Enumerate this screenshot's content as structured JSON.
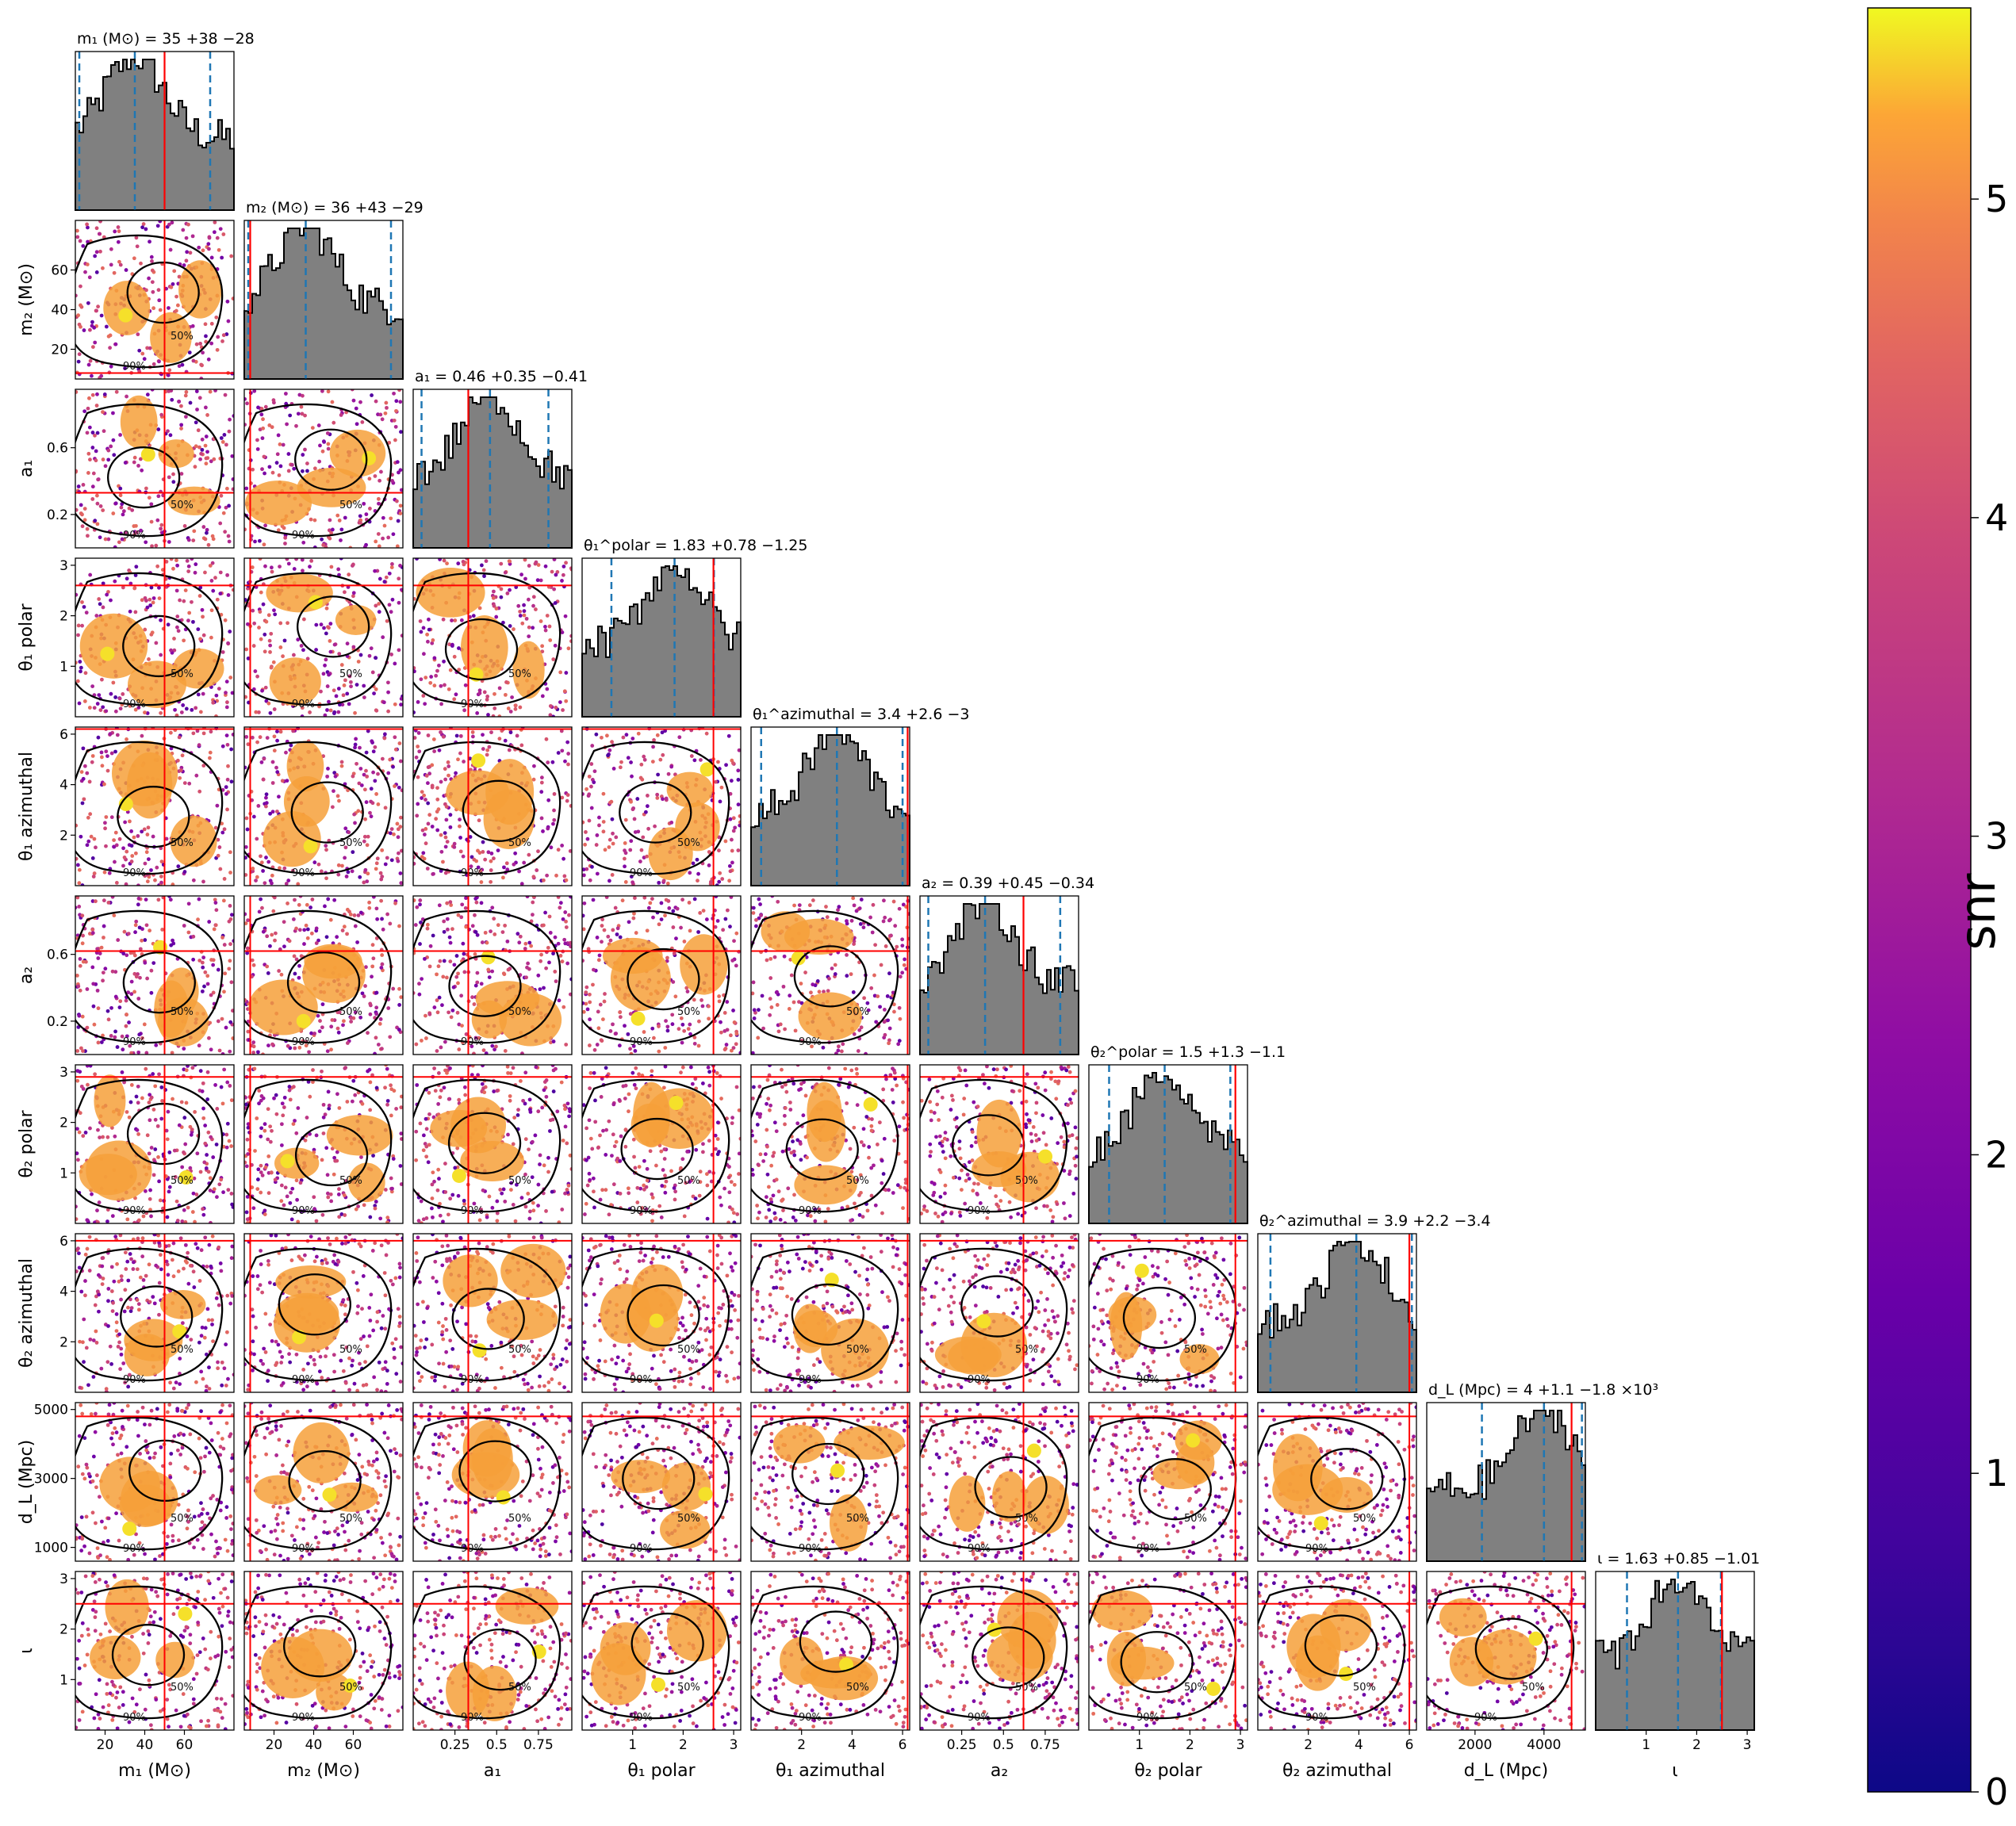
{
  "chart_data": {
    "type": "corner",
    "description": "Posterior corner plot: 1D histograms on the diagonal, 2D scatter (colored by snr) with 50%/90% contours off-diagonal",
    "parameters": [
      {
        "key": "m1",
        "label_html": "m<sub>1</sub> (M<sub>⊙</sub>)",
        "header": "m₁ (M⊙) = 35 +38 −28",
        "median": 35,
        "plus": 38,
        "minus": 28,
        "true": 50,
        "range": [
          5,
          85
        ],
        "ticks": [
          20,
          40,
          60
        ]
      },
      {
        "key": "m2",
        "label_html": "m<sub>2</sub> (M<sub>⊙</sub>)",
        "header": "m₂ (M⊙) = 36 +43 −29",
        "median": 36,
        "plus": 43,
        "minus": 29,
        "true": 8,
        "range": [
          5,
          85
        ],
        "ticks": [
          20,
          40,
          60
        ]
      },
      {
        "key": "a1",
        "header": "a₁ = 0.46 +0.35 −0.41",
        "median": 0.46,
        "plus": 0.35,
        "minus": 0.41,
        "true": 0.33,
        "range": [
          0.0,
          0.95
        ],
        "ticks": [
          0.25,
          0.5,
          0.75
        ]
      },
      {
        "key": "theta1_polar",
        "header": "θ₁^polar = 1.83 +0.78 −1.25",
        "median": 1.83,
        "plus": 0.78,
        "minus": 1.25,
        "true": 2.6,
        "range": [
          0,
          3.14
        ],
        "ticks": [
          1,
          2,
          3
        ]
      },
      {
        "key": "theta1_azimuthal",
        "header": "θ₁^azimuthal = 3.4 +2.6 −3",
        "median": 3.4,
        "plus": 2.6,
        "minus": 3,
        "true": 6.2,
        "range": [
          0,
          6.28
        ],
        "ticks": [
          2,
          4,
          6
        ]
      },
      {
        "key": "a2",
        "header": "a₂ = 0.39 +0.45 −0.34",
        "median": 0.39,
        "plus": 0.45,
        "minus": 0.34,
        "true": 0.62,
        "range": [
          0.0,
          0.95
        ],
        "ticks": [
          0.25,
          0.5,
          0.75
        ]
      },
      {
        "key": "theta2_polar",
        "header": "θ₂^polar = 1.5 +1.3 −1.1",
        "median": 1.5,
        "plus": 1.3,
        "minus": 1.1,
        "true": 2.9,
        "range": [
          0,
          3.14
        ],
        "ticks": [
          1,
          2,
          3
        ]
      },
      {
        "key": "theta2_azimuthal",
        "header": "θ₂^azimuthal = 3.9 +2.2 −3.4",
        "median": 3.9,
        "plus": 2.2,
        "minus": 3.4,
        "true": 6.0,
        "range": [
          0,
          6.28
        ],
        "ticks": [
          2,
          4,
          6
        ]
      },
      {
        "key": "dL",
        "header": "d_L (Mpc) = 4 +1.1 −1.8 ×10³",
        "median": 4000,
        "plus": 1100,
        "minus": 1800,
        "true": 4800,
        "range": [
          600,
          5200
        ],
        "ticks": [
          2000,
          4000
        ],
        "ylabel_ticks": [
          1000,
          3000,
          5000
        ]
      },
      {
        "key": "iota",
        "header": "ι = 1.63 +0.85 −1.01",
        "median": 1.63,
        "plus": 0.85,
        "minus": 1.01,
        "true": 2.5,
        "range": [
          0,
          3.14
        ],
        "ticks": [
          1,
          2,
          3
        ]
      }
    ],
    "row_tick_labels": {
      "m2": [
        "20",
        "40",
        "60"
      ],
      "a1": [
        "0.2",
        "0.6"
      ],
      "theta1_polar": [
        "1",
        "2",
        "3"
      ],
      "theta1_azimuthal": [
        "2",
        "4",
        "6"
      ],
      "a2": [
        "0.2",
        "0.6"
      ],
      "theta2_polar": [
        "1",
        "2",
        "3"
      ],
      "theta2_azimuthal": [
        "2",
        "4",
        "6"
      ],
      "dL": [
        "1000",
        "3000",
        "5000"
      ],
      "iota": [
        "1",
        "2",
        "3"
      ]
    },
    "contour_labels": [
      "50%",
      "90%"
    ],
    "colorbar": {
      "label": "snr",
      "ticks": [
        "0",
        "1",
        "2",
        "3",
        "4",
        "5"
      ],
      "range": [
        0,
        5.6
      ],
      "colormap": "plasma"
    },
    "colors": {
      "hist_fill": "#808080",
      "hist_edge": "#000000",
      "quantile_line": "#1f77b4",
      "truth_line": "#ff0000",
      "contour": "#000000"
    }
  }
}
